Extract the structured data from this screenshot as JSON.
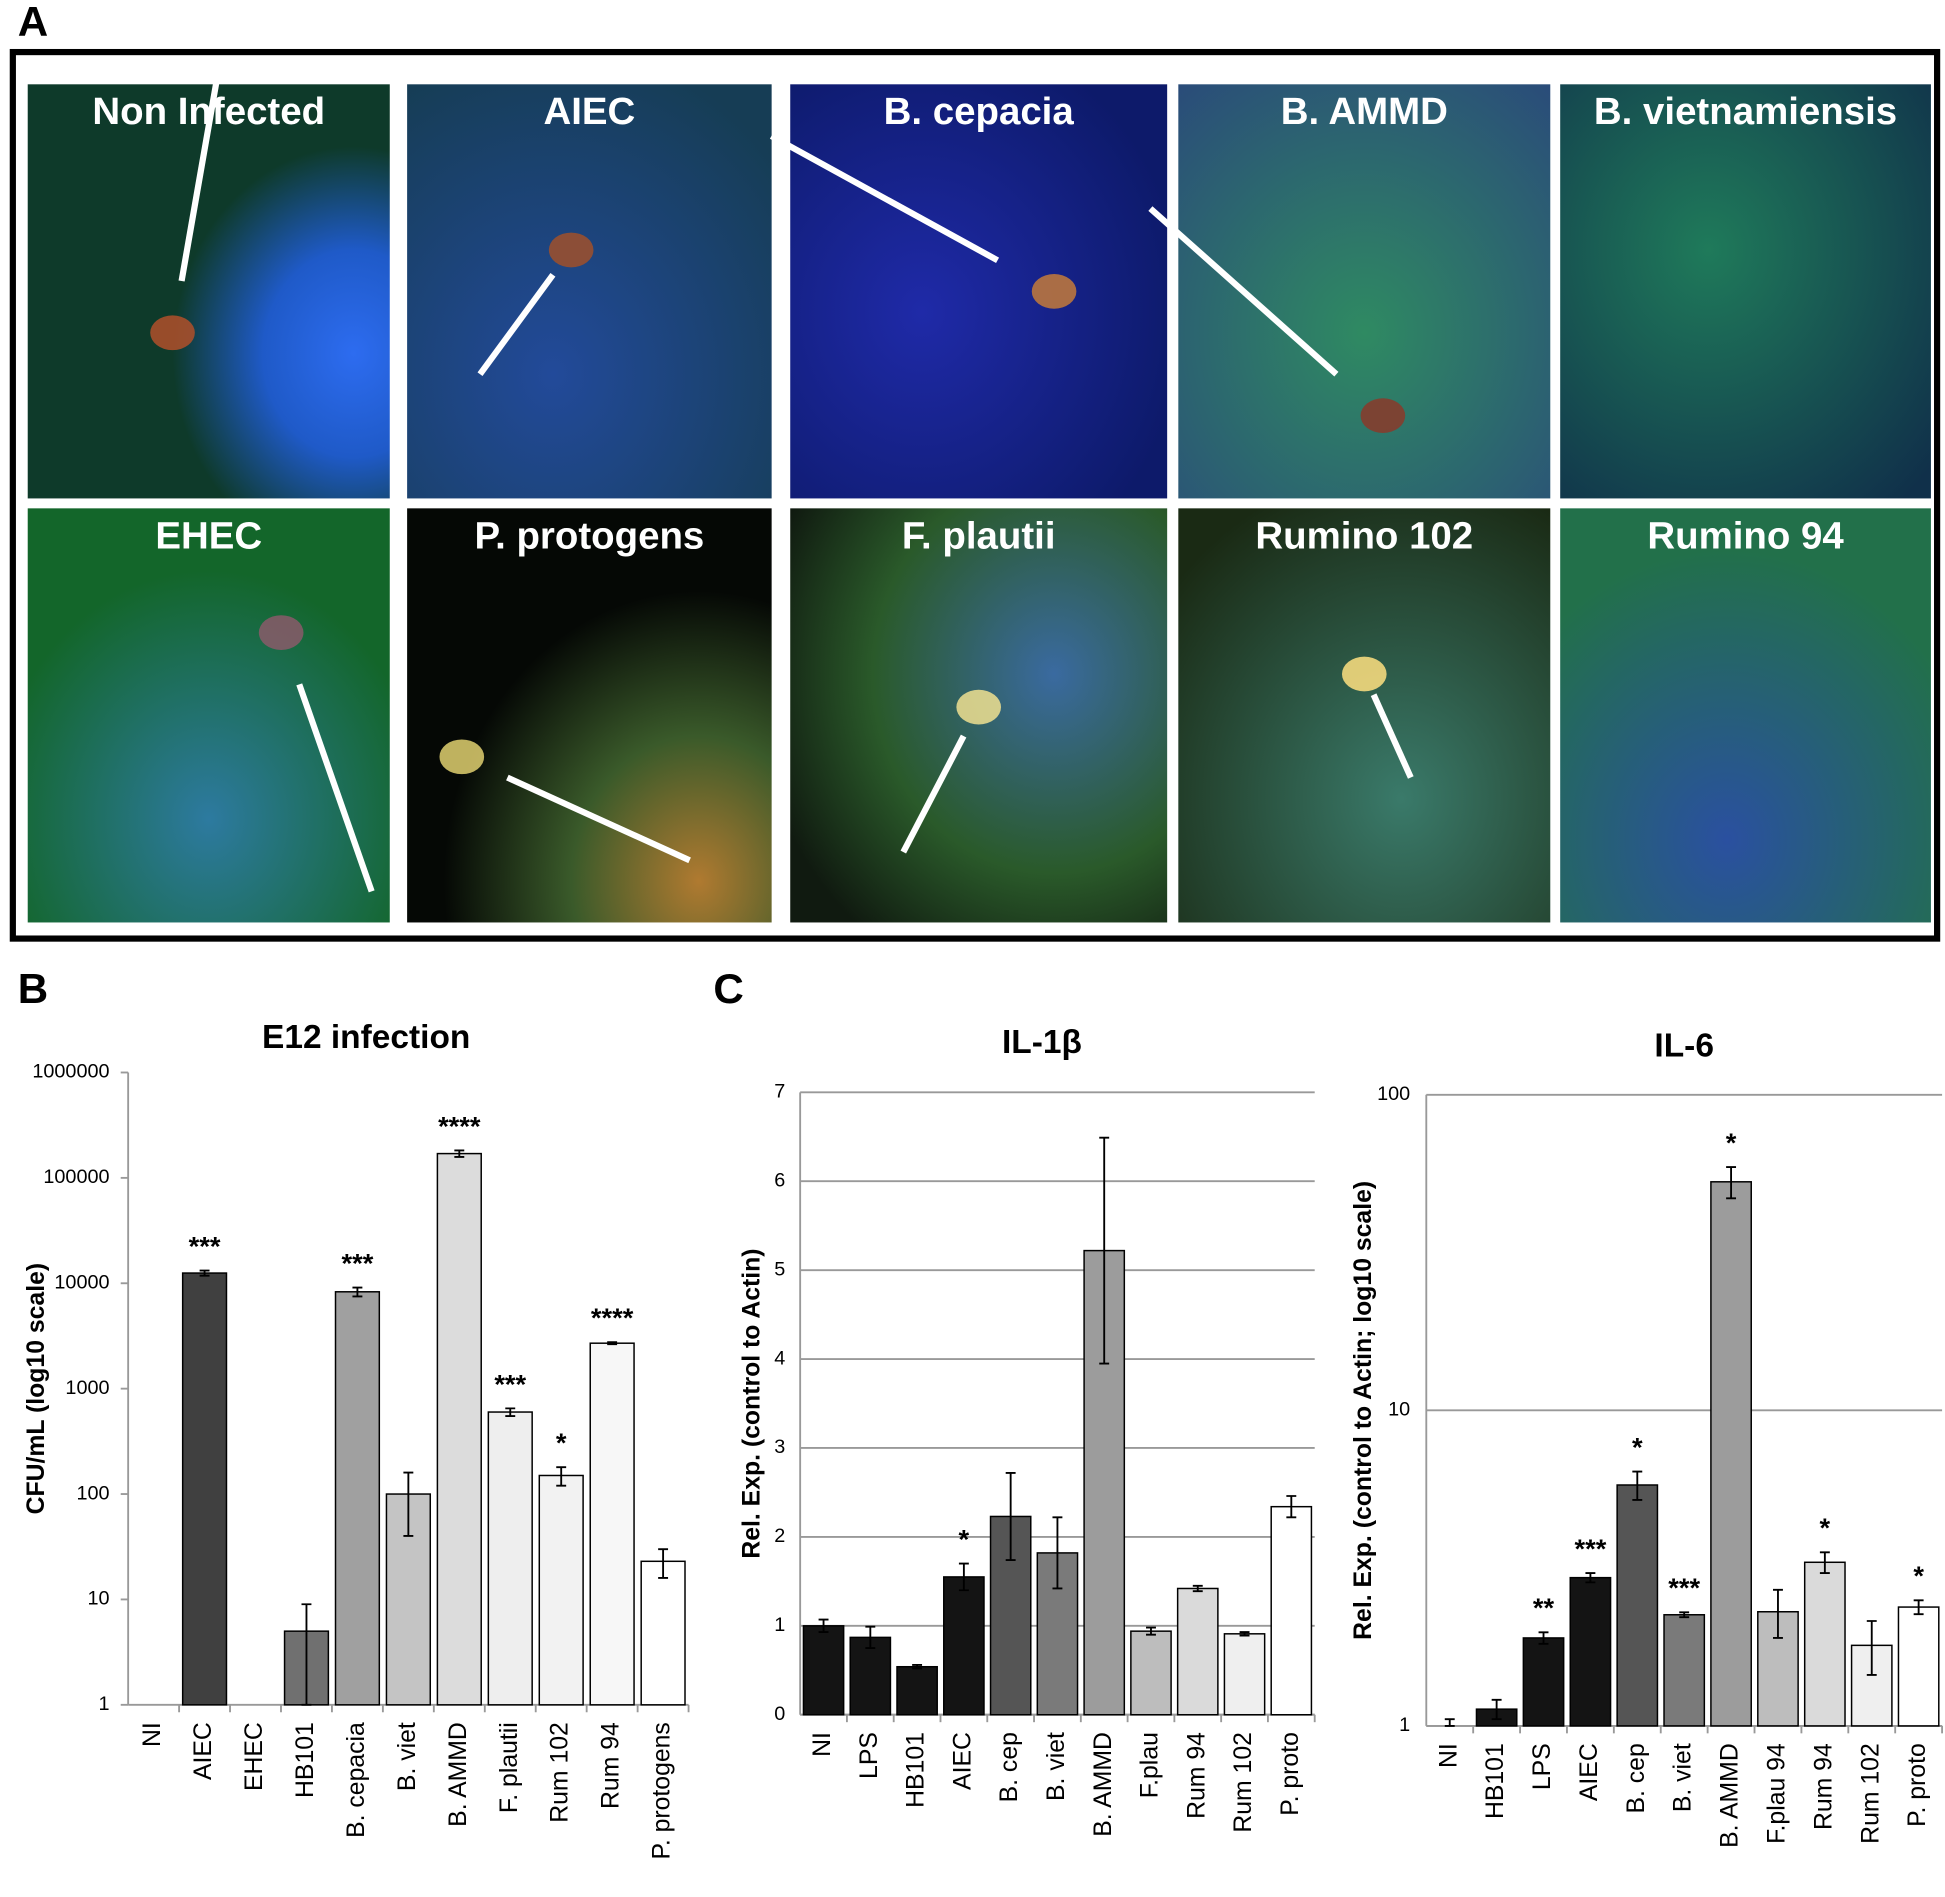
{
  "panels": [
    "A",
    "B",
    "C"
  ],
  "images": [
    {
      "label": "Non Infected"
    },
    {
      "label": "AIEC"
    },
    {
      "label": "B. cepacia"
    },
    {
      "label": "B. AMMD"
    },
    {
      "label": "B. vietnamiensis"
    },
    {
      "label": "EHEC"
    },
    {
      "label": "P. protogens"
    },
    {
      "label": "F. plautii"
    },
    {
      "label": "Rumino 102"
    },
    {
      "label": "Rumino 94"
    }
  ],
  "chart_data": [
    {
      "type": "bar",
      "title": "E12 infection",
      "y_label": "CFU/mL (log10 scale)",
      "log_scale": true,
      "grid": false,
      "categories": [
        "NI",
        "AIEC",
        "EHEC",
        "HB101",
        "B. cepacia",
        "B. viet",
        "B. AMMD",
        "F. plautii",
        "Rum 102",
        "Rum 94",
        "P. protogens"
      ],
      "values": [
        null,
        12500,
        null,
        5,
        8300,
        100,
        170000,
        600,
        150,
        2700,
        23
      ],
      "errors": [
        null,
        700,
        null,
        4,
        800,
        60,
        12000,
        50,
        30,
        60,
        7
      ],
      "annotations": [
        null,
        "***",
        null,
        null,
        "***",
        null,
        "****",
        "***",
        "*",
        "****",
        null
      ],
      "colors": [
        "#303030",
        "#404040",
        "#505050",
        "#707070",
        "#a0a0a0",
        "#c4c4c4",
        "#dcdcdc",
        "#eeeeee",
        "#f2f2f2",
        "#f7f7f7",
        "#ffffff"
      ],
      "ylim": [
        1,
        1000000
      ],
      "yticks": [
        1,
        10,
        100,
        1000,
        10000,
        100000,
        1000000
      ]
    },
    {
      "type": "bar",
      "title": "IL-1β",
      "y_label": "Rel. Exp. (control to Actin)",
      "log_scale": false,
      "grid": true,
      "categories": [
        "NI",
        "LPS",
        "HB101",
        "AIEC",
        "B. cep",
        "B. viet",
        "B. AMMD",
        "F.plau",
        "Rum 94",
        "Rum 102",
        "P. proto"
      ],
      "values": [
        1.0,
        0.87,
        0.54,
        1.55,
        2.23,
        1.82,
        5.22,
        0.94,
        1.42,
        0.91,
        2.34
      ],
      "errors": [
        0.07,
        0.12,
        0.02,
        0.15,
        0.49,
        0.4,
        1.27,
        0.04,
        0.03,
        0.02,
        0.12
      ],
      "annotations": [
        null,
        null,
        null,
        "*",
        null,
        null,
        null,
        null,
        null,
        null,
        null
      ],
      "colors": [
        "#141414",
        "#141414",
        "#141414",
        "#141414",
        "#555555",
        "#7a7a7a",
        "#9c9c9c",
        "#bdbdbd",
        "#dadada",
        "#efefef",
        "#ffffff"
      ],
      "ylim": [
        0,
        7
      ],
      "yticks": [
        0,
        1,
        2,
        3,
        4,
        5,
        6,
        7
      ]
    },
    {
      "type": "bar",
      "title": "IL-6",
      "y_label": "Rel. Exp. (control to Actin; log10 scale)",
      "log_scale": true,
      "grid": true,
      "categories": [
        "NI",
        "HB101",
        "LPS",
        "AIEC",
        "B. cep",
        "B. viet",
        "B. AMMD",
        "F.plau 94",
        "Rum 94",
        "Rum 102",
        "P. proto"
      ],
      "values": [
        1.0,
        1.13,
        1.9,
        2.95,
        5.8,
        2.25,
        53,
        2.3,
        3.3,
        1.8,
        2.38
      ],
      "errors": [
        0.05,
        0.08,
        0.08,
        0.1,
        0.6,
        0.04,
        6,
        0.4,
        0.25,
        0.35,
        0.12
      ],
      "annotations": [
        null,
        null,
        "**",
        "***",
        "*",
        "***",
        "*",
        null,
        "*",
        null,
        "*"
      ],
      "colors": [
        "#141414",
        "#141414",
        "#141414",
        "#141414",
        "#555555",
        "#7a7a7a",
        "#9c9c9c",
        "#bdbdbd",
        "#dadada",
        "#efefef",
        "#ffffff"
      ],
      "ylim": [
        1,
        100
      ],
      "yticks": [
        1,
        10,
        100
      ]
    }
  ]
}
